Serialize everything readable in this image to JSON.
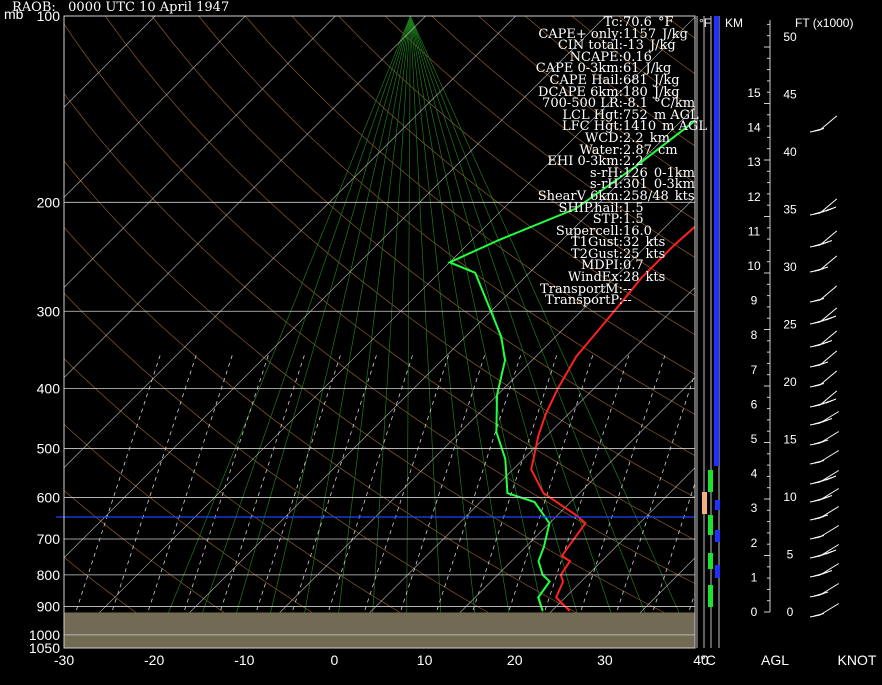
{
  "header": {
    "title": "RAOB:   0000 UTC 10 April 1947"
  },
  "units": {
    "pressure": "mb",
    "temp_axis": "°C",
    "height_axis": "AGL",
    "wind_axis": "KNOT",
    "ft_label": "FT (x1000)",
    "f_label": "°F",
    "km_label": "KM"
  },
  "params": [
    {
      "name": "Tc:",
      "value": "70.6",
      "unit": "°F"
    },
    {
      "name": "CAPE+ only:",
      "value": "1157",
      "unit": "J/kg"
    },
    {
      "name": "CIN total:",
      "value": "-13",
      "unit": "J/kg"
    },
    {
      "name": "NCAPE:",
      "value": "0.16",
      "unit": ""
    },
    {
      "name": "CAPE 0-3km:",
      "value": "61",
      "unit": "J/kg"
    },
    {
      "name": "CAPE Hail:",
      "value": "681",
      "unit": "J/kg"
    },
    {
      "name": "DCAPE 6km:",
      "value": "180",
      "unit": "J/kg"
    },
    {
      "name": "700-500 LR:",
      "value": "-8.1",
      "unit": "°C/km"
    },
    {
      "name": "LCL Hgt:",
      "value": "752",
      "unit": "m AGL"
    },
    {
      "name": "LFC Hgt:",
      "value": "1410",
      "unit": "m AGL"
    },
    {
      "name": "WCD:",
      "value": "2.2",
      "unit": "km"
    },
    {
      "name": "Water:",
      "value": "2.87",
      "unit": "cm"
    },
    {
      "name": "EHI 0-3km:",
      "value": "2.2",
      "unit": ""
    },
    {
      "name": "s-rH:",
      "value": "126",
      "unit": "0-1km"
    },
    {
      "name": "s-rH:",
      "value": "301",
      "unit": "0-3km"
    },
    {
      "name": "ShearV 6km:",
      "value": "258/48",
      "unit": "kts"
    },
    {
      "name": "SHIP.hail:",
      "value": "1.5",
      "unit": ""
    },
    {
      "name": "STP:",
      "value": "1.5",
      "unit": ""
    },
    {
      "name": "Supercell:",
      "value": "16.0",
      "unit": ""
    },
    {
      "name": "T1Gust:",
      "value": "32",
      "unit": "kts"
    },
    {
      "name": "T2Gust:",
      "value": "25",
      "unit": "kts"
    },
    {
      "name": "MDPI:",
      "value": "0.7",
      "unit": ""
    },
    {
      "name": "WindEx:",
      "value": "28",
      "unit": "kts"
    },
    {
      "name": "TransportM:",
      "value": "--",
      "unit": ""
    },
    {
      "name": "TransportP:",
      "value": "--",
      "unit": ""
    }
  ],
  "chart_data": {
    "type": "line",
    "title": "RAOB:   0000 UTC 10 April 1947",
    "xlabel": "°C",
    "ylabel": "mb",
    "x_ticks": [
      -30,
      -20,
      -10,
      0,
      10,
      20,
      30,
      40
    ],
    "xlim": [
      -30,
      40
    ],
    "y_ticks": [
      100,
      200,
      300,
      400,
      500,
      600,
      700,
      800,
      900,
      1000,
      1050
    ],
    "ylim": [
      100,
      1050
    ],
    "y_scale": "log",
    "grid": true,
    "series": [
      {
        "color": "#ff2020",
        "points": [
          [
            22,
            915
          ],
          [
            19,
            870
          ],
          [
            18,
            820
          ],
          [
            17,
            800
          ],
          [
            16.5,
            760
          ],
          [
            15,
            745
          ],
          [
            14,
            660
          ],
          [
            12,
            640
          ],
          [
            6,
            590
          ],
          [
            2,
            540
          ],
          [
            -1,
            475
          ],
          [
            -2.5,
            440
          ],
          [
            -4,
            400
          ],
          [
            -5.5,
            355
          ],
          [
            -6,
            320
          ],
          [
            -6.5,
            290
          ],
          [
            -7,
            265
          ],
          [
            -7,
            235
          ],
          [
            -6.5,
            205
          ],
          [
            -5,
            180
          ],
          [
            -2,
            140
          ],
          [
            1,
            115
          ],
          [
            3,
            100
          ]
        ]
      },
      {
        "color": "#20ff40",
        "points": [
          [
            19,
            915
          ],
          [
            17,
            870
          ],
          [
            16.5,
            820
          ],
          [
            15,
            800
          ],
          [
            13,
            760
          ],
          [
            12,
            720
          ],
          [
            10,
            660
          ],
          [
            6,
            610
          ],
          [
            2,
            590
          ],
          [
            -2,
            520
          ],
          [
            -6,
            470
          ],
          [
            -10,
            410
          ],
          [
            -13,
            360
          ],
          [
            -16,
            330
          ],
          [
            -20,
            300
          ],
          [
            -26,
            260
          ],
          [
            -30,
            250
          ],
          [
            -27,
            230
          ],
          [
            -22,
            205
          ],
          [
            -20,
            175
          ],
          [
            -18,
            140
          ],
          [
            -16,
            120
          ],
          [
            -13,
            100
          ]
        ]
      }
    ],
    "blue_line_pressure": 645,
    "ground_pressure": 920,
    "height_scale_ft": [
      0,
      5,
      10,
      15,
      20,
      25,
      30,
      35,
      40,
      45,
      50
    ],
    "height_scale_km": [
      1,
      2,
      3,
      4,
      5,
      6,
      7,
      8,
      9,
      10,
      11,
      12,
      13,
      14,
      15
    ]
  }
}
